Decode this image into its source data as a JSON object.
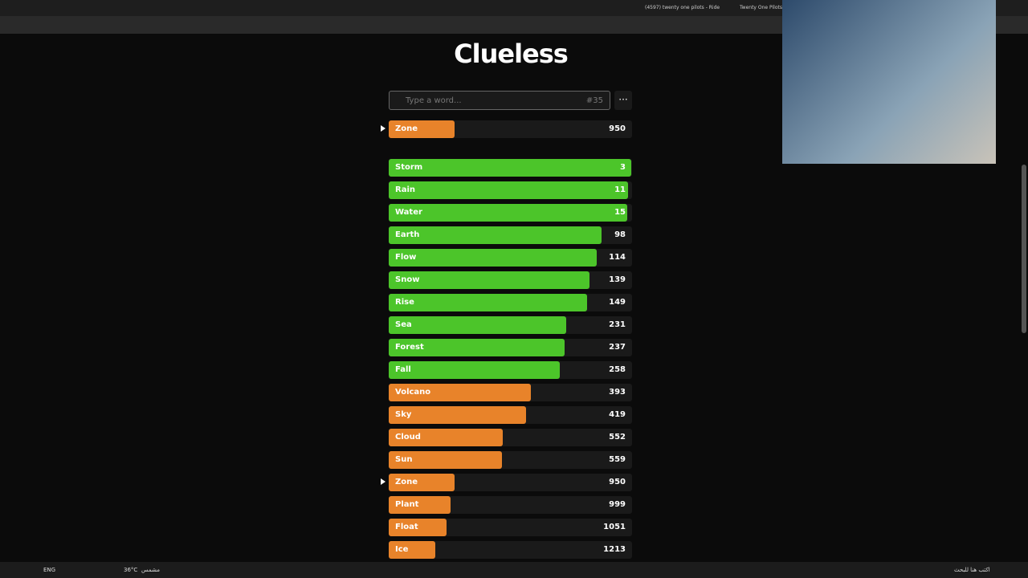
{
  "browser": {
    "tabs": [
      "(4597) twenty one pilots - Ride",
      "Twenty One Pilots T"
    ]
  },
  "game": {
    "title": "Clueless",
    "placeholder": "Type a word...",
    "game_number": "#35",
    "last_guess": {
      "word": "Zone",
      "rank": 950
    },
    "guesses": [
      {
        "word": "Storm",
        "rank": 3
      },
      {
        "word": "Rain",
        "rank": 11
      },
      {
        "word": "Water",
        "rank": 15
      },
      {
        "word": "Earth",
        "rank": 98
      },
      {
        "word": "Flow",
        "rank": 114
      },
      {
        "word": "Snow",
        "rank": 139
      },
      {
        "word": "Rise",
        "rank": 149
      },
      {
        "word": "Sea",
        "rank": 231
      },
      {
        "word": "Forest",
        "rank": 237
      },
      {
        "word": "Fall",
        "rank": 258
      },
      {
        "word": "Volcano",
        "rank": 393
      },
      {
        "word": "Sky",
        "rank": 419
      },
      {
        "word": "Cloud",
        "rank": 552
      },
      {
        "word": "Sun",
        "rank": 559
      },
      {
        "word": "Zone",
        "rank": 950
      },
      {
        "word": "Plant",
        "rank": 999
      },
      {
        "word": "Float",
        "rank": 1051
      },
      {
        "word": "Ice",
        "rank": 1213
      }
    ]
  },
  "taskbar": {
    "language": "ENG",
    "weather": "36°C",
    "condition": "مشمس",
    "search": "اكتب هنا للبحث"
  }
}
